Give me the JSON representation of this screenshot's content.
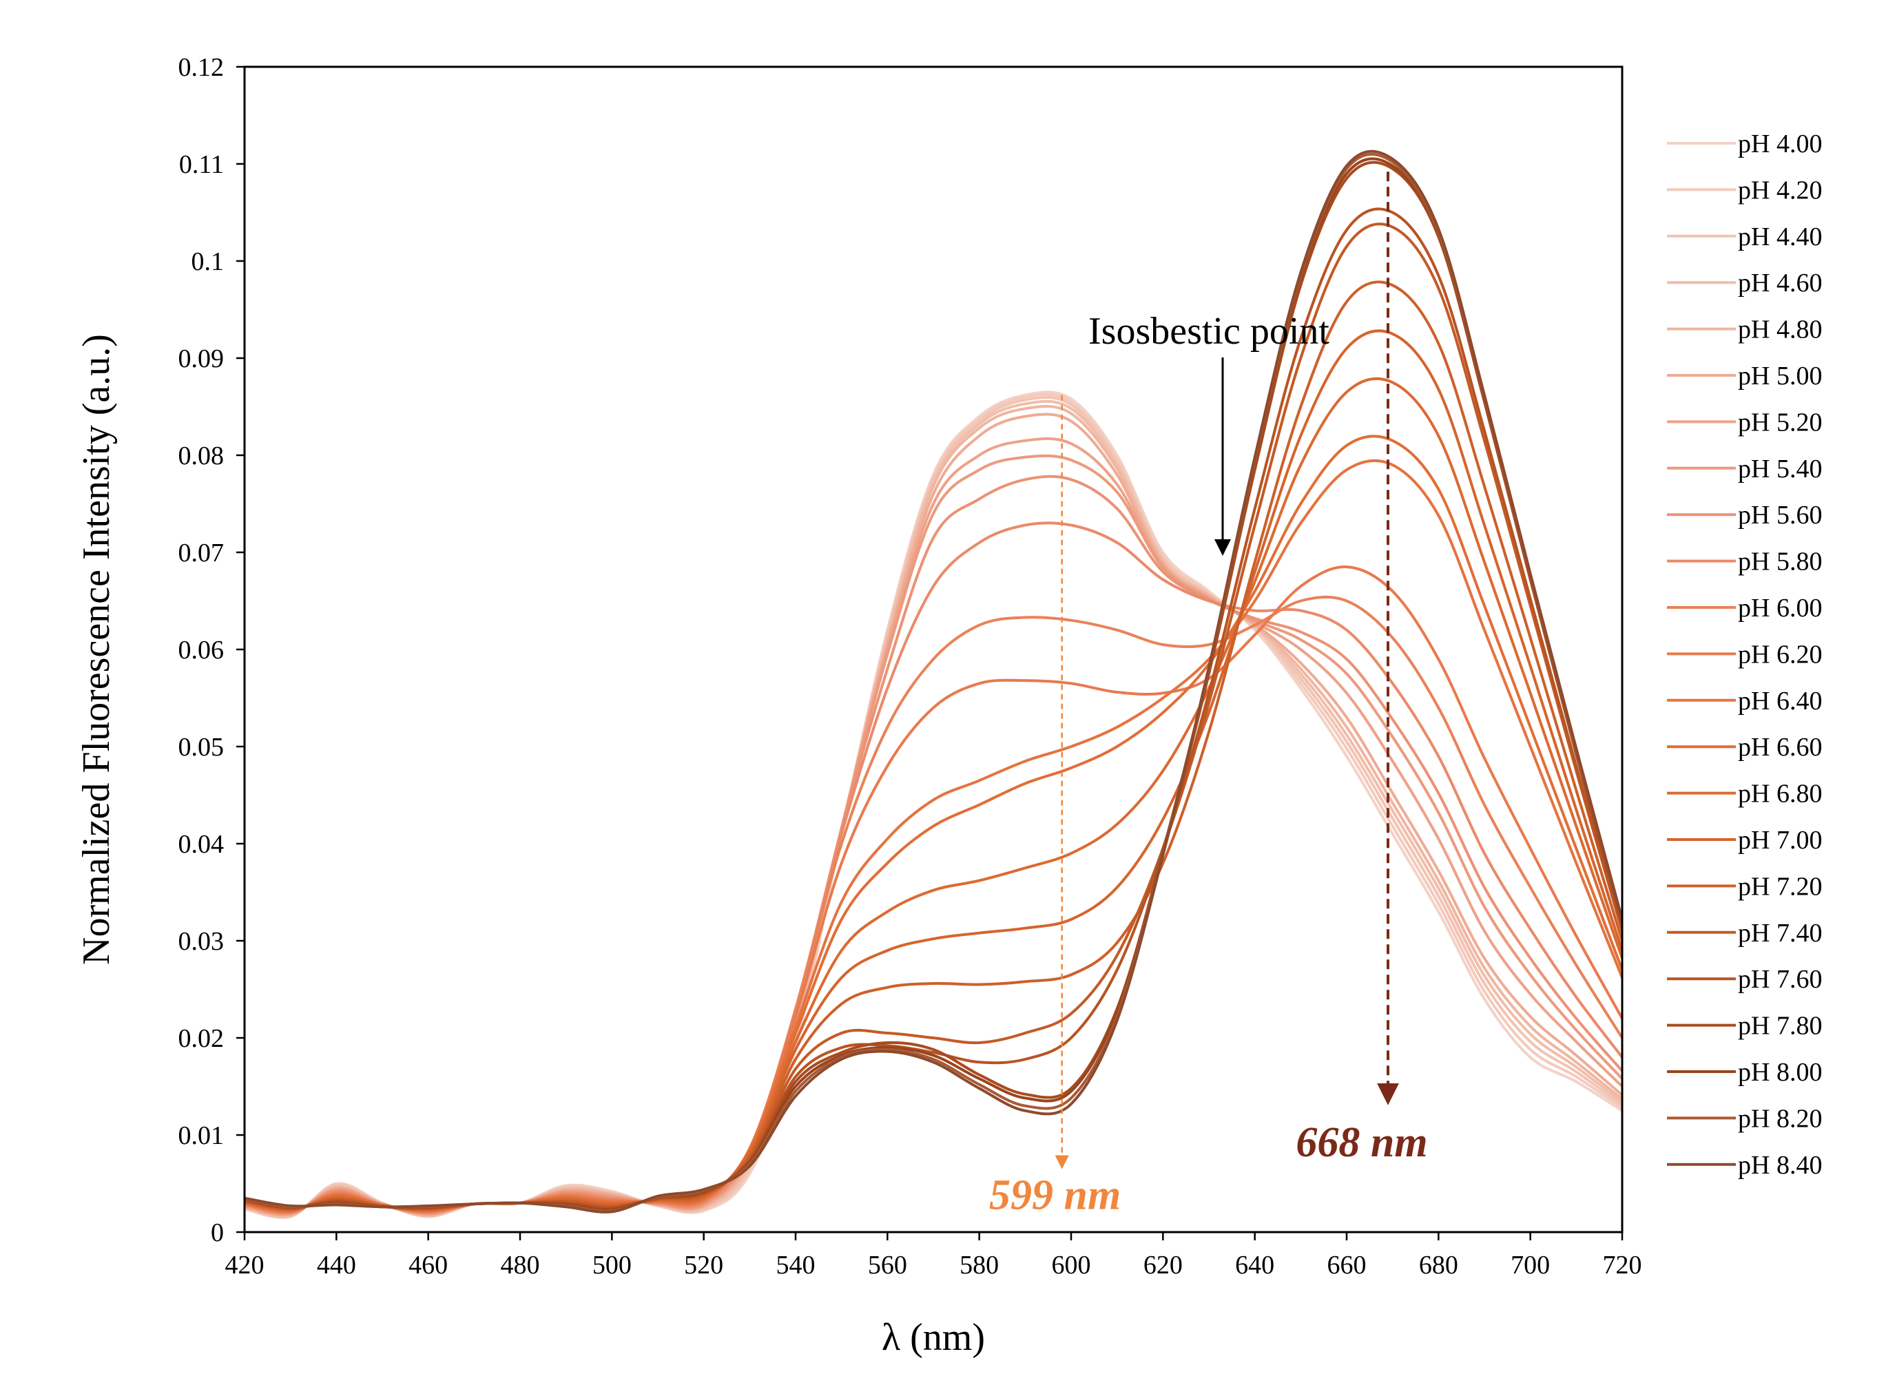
{
  "chart_data": {
    "type": "line",
    "title": "",
    "xlabel": "λ (nm)",
    "ylabel": "Normalized Fluorescence Intensity (a.u.)",
    "xlim": [
      420,
      720
    ],
    "ylim": [
      0,
      0.12
    ],
    "xticks": [
      420,
      440,
      460,
      480,
      500,
      520,
      540,
      560,
      580,
      600,
      620,
      640,
      660,
      680,
      700,
      720
    ],
    "yticks": [
      0,
      0.01,
      0.02,
      0.03,
      0.04,
      0.05,
      0.06,
      0.07,
      0.08,
      0.09,
      0.1,
      0.11,
      0.12
    ],
    "ytick_labels": [
      "0",
      "0.01",
      "0.02",
      "0.03",
      "0.04",
      "0.05",
      "0.06",
      "0.07",
      "0.08",
      "0.09",
      "0.1",
      "0.11",
      "0.12"
    ],
    "grid": false,
    "legend_position": "right",
    "x": [
      420,
      430,
      440,
      450,
      460,
      470,
      480,
      490,
      500,
      510,
      520,
      530,
      540,
      550,
      560,
      570,
      580,
      590,
      600,
      610,
      620,
      630,
      640,
      650,
      660,
      670,
      680,
      690,
      700,
      710,
      720
    ],
    "series": [
      {
        "name": "pH 4.00",
        "color": "#f4d2c6",
        "values": [
          0.0024,
          0.0016,
          0.005,
          0.003,
          0.0016,
          0.0029,
          0.003,
          0.0048,
          0.0042,
          0.0027,
          0.0022,
          0.006,
          0.019,
          0.041,
          0.062,
          0.078,
          0.084,
          0.0862,
          0.0858,
          0.08,
          0.07,
          0.066,
          0.062,
          0.056,
          0.049,
          0.041,
          0.033,
          0.024,
          0.018,
          0.0155,
          0.0125
        ]
      },
      {
        "name": "pH 4.20",
        "color": "#f2cbbd",
        "values": [
          0.0024,
          0.0016,
          0.0049,
          0.003,
          0.0016,
          0.0029,
          0.003,
          0.0047,
          0.0041,
          0.0027,
          0.0023,
          0.0063,
          0.0195,
          0.0412,
          0.0618,
          0.0778,
          0.0838,
          0.086,
          0.0855,
          0.0797,
          0.0697,
          0.0658,
          0.0622,
          0.0565,
          0.0498,
          0.0418,
          0.0338,
          0.0248,
          0.0188,
          0.016,
          0.0128
        ]
      },
      {
        "name": "pH 4.40",
        "color": "#f1c4b3",
        "values": [
          0.0025,
          0.0017,
          0.0048,
          0.0029,
          0.0017,
          0.0029,
          0.003,
          0.0046,
          0.004,
          0.0028,
          0.0024,
          0.0066,
          0.02,
          0.0413,
          0.0615,
          0.0775,
          0.0835,
          0.0857,
          0.0852,
          0.0793,
          0.0694,
          0.0657,
          0.0623,
          0.057,
          0.0505,
          0.0426,
          0.0346,
          0.0256,
          0.0196,
          0.0165,
          0.0131
        ]
      },
      {
        "name": "pH 4.60",
        "color": "#f0beab",
        "values": [
          0.0025,
          0.0017,
          0.0047,
          0.0029,
          0.0017,
          0.0029,
          0.003,
          0.0045,
          0.004,
          0.0028,
          0.0025,
          0.0069,
          0.0205,
          0.0414,
          0.0612,
          0.0772,
          0.0832,
          0.0853,
          0.0848,
          0.079,
          0.0692,
          0.0656,
          0.0624,
          0.0575,
          0.0512,
          0.0434,
          0.0354,
          0.0264,
          0.0204,
          0.017,
          0.0134
        ]
      },
      {
        "name": "pH 4.80",
        "color": "#efb6a1",
        "values": [
          0.0026,
          0.0018,
          0.0046,
          0.0029,
          0.0018,
          0.0029,
          0.003,
          0.0044,
          0.0039,
          0.0028,
          0.0026,
          0.0072,
          0.021,
          0.0415,
          0.0608,
          0.0768,
          0.0828,
          0.0848,
          0.0843,
          0.0786,
          0.069,
          0.0655,
          0.0625,
          0.058,
          0.052,
          0.0442,
          0.0362,
          0.0272,
          0.0212,
          0.0175,
          0.0137
        ]
      },
      {
        "name": "pH 5.00",
        "color": "#eeac94",
        "values": [
          0.0026,
          0.0018,
          0.0045,
          0.0029,
          0.0018,
          0.0029,
          0.003,
          0.0043,
          0.0038,
          0.0029,
          0.0027,
          0.0075,
          0.0215,
          0.0415,
          0.0605,
          0.076,
          0.082,
          0.084,
          0.0835,
          0.078,
          0.0688,
          0.0654,
          0.0626,
          0.0586,
          0.053,
          0.0452,
          0.0372,
          0.0282,
          0.0222,
          0.0182,
          0.0141
        ]
      },
      {
        "name": "pH 5.20",
        "color": "#eda288",
        "values": [
          0.0027,
          0.0019,
          0.0044,
          0.0029,
          0.0019,
          0.0029,
          0.003,
          0.0042,
          0.0037,
          0.0029,
          0.0028,
          0.0078,
          0.022,
          0.0416,
          0.06,
          0.075,
          0.08,
          0.0815,
          0.0812,
          0.077,
          0.0686,
          0.0653,
          0.0628,
          0.06,
          0.0555,
          0.0485,
          0.0405,
          0.031,
          0.0245,
          0.0196,
          0.015
        ]
      },
      {
        "name": "pH 5.40",
        "color": "#ec9a7e",
        "values": [
          0.0027,
          0.0019,
          0.0043,
          0.0028,
          0.0019,
          0.0029,
          0.003,
          0.0041,
          0.0036,
          0.0029,
          0.0029,
          0.008,
          0.0225,
          0.0416,
          0.0595,
          0.074,
          0.0785,
          0.0798,
          0.0795,
          0.0762,
          0.0684,
          0.0652,
          0.063,
          0.061,
          0.0575,
          0.051,
          0.0432,
          0.0335,
          0.0265,
          0.0208,
          0.0158
        ]
      },
      {
        "name": "pH 5.60",
        "color": "#eb9275",
        "values": [
          0.0028,
          0.002,
          0.0042,
          0.0028,
          0.002,
          0.0029,
          0.003,
          0.004,
          0.0035,
          0.003,
          0.003,
          0.0082,
          0.0228,
          0.0415,
          0.058,
          0.0715,
          0.0755,
          0.0775,
          0.0775,
          0.0745,
          0.068,
          0.0651,
          0.0632,
          0.0618,
          0.059,
          0.0528,
          0.0452,
          0.0355,
          0.0282,
          0.022,
          0.0166
        ]
      },
      {
        "name": "pH 5.80",
        "color": "#ea8a6a",
        "values": [
          0.0028,
          0.002,
          0.0041,
          0.0028,
          0.002,
          0.0029,
          0.003,
          0.0039,
          0.0034,
          0.003,
          0.0031,
          0.0084,
          0.023,
          0.041,
          0.056,
          0.0665,
          0.071,
          0.0728,
          0.0728,
          0.071,
          0.0672,
          0.065,
          0.064,
          0.064,
          0.062,
          0.0565,
          0.049,
          0.039,
          0.0312,
          0.0242,
          0.018
        ]
      },
      {
        "name": "pH 6.00",
        "color": "#e98259",
        "values": [
          0.0029,
          0.0021,
          0.004,
          0.0028,
          0.0021,
          0.0029,
          0.003,
          0.0038,
          0.0033,
          0.0031,
          0.0032,
          0.0086,
          0.0228,
          0.04,
          0.052,
          0.059,
          0.0625,
          0.0633,
          0.063,
          0.062,
          0.0605,
          0.0605,
          0.0625,
          0.065,
          0.065,
          0.0612,
          0.054,
          0.044,
          0.0355,
          0.0275,
          0.02
        ]
      },
      {
        "name": "pH 6.20",
        "color": "#e87a4e",
        "values": [
          0.0029,
          0.0021,
          0.0039,
          0.0028,
          0.0021,
          0.0029,
          0.003,
          0.0037,
          0.0032,
          0.0031,
          0.0033,
          0.0086,
          0.0222,
          0.038,
          0.048,
          0.054,
          0.0565,
          0.0568,
          0.0565,
          0.0556,
          0.0555,
          0.057,
          0.0615,
          0.0665,
          0.0685,
          0.066,
          0.059,
          0.0488,
          0.0395,
          0.0305,
          0.022
        ]
      },
      {
        "name": "pH 6.40",
        "color": "#e5733f",
        "values": [
          0.003,
          0.0022,
          0.0038,
          0.0028,
          0.0022,
          0.0029,
          0.003,
          0.0036,
          0.0031,
          0.0032,
          0.0034,
          0.0085,
          0.0212,
          0.034,
          0.0405,
          0.0445,
          0.0465,
          0.0485,
          0.05,
          0.052,
          0.055,
          0.059,
          0.065,
          0.073,
          0.0785,
          0.079,
          0.0738,
          0.062,
          0.05,
          0.038,
          0.0262
        ]
      },
      {
        "name": "pH 6.60",
        "color": "#e16e36",
        "values": [
          0.003,
          0.0022,
          0.0037,
          0.0027,
          0.0022,
          0.0029,
          0.003,
          0.0035,
          0.003,
          0.0032,
          0.0035,
          0.0084,
          0.0205,
          0.0322,
          0.038,
          0.0418,
          0.044,
          0.0462,
          0.0478,
          0.05,
          0.0535,
          0.0585,
          0.066,
          0.075,
          0.081,
          0.0815,
          0.0765,
          0.0645,
          0.052,
          0.0395,
          0.027
        ]
      },
      {
        "name": "pH 6.80",
        "color": "#dc6a31",
        "values": [
          0.0031,
          0.0023,
          0.0036,
          0.0027,
          0.0023,
          0.0029,
          0.003,
          0.0034,
          0.0029,
          0.0033,
          0.0036,
          0.0082,
          0.0196,
          0.029,
          0.033,
          0.0352,
          0.0362,
          0.0375,
          0.039,
          0.042,
          0.0475,
          0.056,
          0.067,
          0.079,
          0.0865,
          0.0875,
          0.082,
          0.069,
          0.0555,
          0.0418,
          0.0282
        ]
      },
      {
        "name": "pH 7.00",
        "color": "#d5652d",
        "values": [
          0.0031,
          0.0023,
          0.0035,
          0.0027,
          0.0023,
          0.0029,
          0.003,
          0.0033,
          0.0028,
          0.0033,
          0.0037,
          0.008,
          0.0188,
          0.0262,
          0.029,
          0.0302,
          0.0308,
          0.0313,
          0.0322,
          0.0355,
          0.0425,
          0.0535,
          0.068,
          0.082,
          0.091,
          0.0925,
          0.0868,
          0.0728,
          0.0583,
          0.0435,
          0.029
        ]
      },
      {
        "name": "pH 7.20",
        "color": "#cd6029",
        "values": [
          0.0032,
          0.0024,
          0.0034,
          0.0027,
          0.0024,
          0.0029,
          0.003,
          0.0032,
          0.0027,
          0.0034,
          0.0038,
          0.0078,
          0.0178,
          0.0235,
          0.0252,
          0.0256,
          0.0255,
          0.0258,
          0.0265,
          0.0298,
          0.038,
          0.0515,
          0.069,
          0.085,
          0.0958,
          0.0975,
          0.0915,
          0.0768,
          0.0612,
          0.0455,
          0.03
        ]
      },
      {
        "name": "pH 7.40",
        "color": "#c45a26",
        "values": [
          0.0032,
          0.0024,
          0.0033,
          0.0027,
          0.0024,
          0.0029,
          0.003,
          0.0031,
          0.0026,
          0.0034,
          0.0039,
          0.0076,
          0.0168,
          0.0205,
          0.0205,
          0.02,
          0.0195,
          0.0205,
          0.0225,
          0.0285,
          0.0395,
          0.0545,
          0.0728,
          0.09,
          0.1015,
          0.1035,
          0.0972,
          0.0815,
          0.0645,
          0.0475,
          0.031
        ]
      },
      {
        "name": "pH 7.60",
        "color": "#b85423",
        "values": [
          0.0033,
          0.0025,
          0.0032,
          0.0026,
          0.0025,
          0.0029,
          0.003,
          0.003,
          0.0025,
          0.0035,
          0.004,
          0.0074,
          0.016,
          0.019,
          0.0192,
          0.0185,
          0.0175,
          0.0178,
          0.02,
          0.027,
          0.0395,
          0.0555,
          0.0745,
          0.092,
          0.1032,
          0.105,
          0.0985,
          0.0825,
          0.0652,
          0.048,
          0.0312
        ]
      },
      {
        "name": "pH 7.80",
        "color": "#a94b1f",
        "values": [
          0.0033,
          0.0025,
          0.0031,
          0.0026,
          0.0025,
          0.0029,
          0.003,
          0.0029,
          0.0024,
          0.0035,
          0.0041,
          0.0073,
          0.0155,
          0.0185,
          0.0195,
          0.0188,
          0.0162,
          0.0142,
          0.0148,
          0.023,
          0.039,
          0.0575,
          0.0785,
          0.0975,
          0.1085,
          0.1095,
          0.1025,
          0.0855,
          0.0672,
          0.0492,
          0.0318
        ]
      },
      {
        "name": "pH 8.00",
        "color": "#9b441c",
        "values": [
          0.0034,
          0.0026,
          0.003,
          0.0026,
          0.0026,
          0.0029,
          0.003,
          0.0028,
          0.0023,
          0.0036,
          0.0042,
          0.0072,
          0.015,
          0.0182,
          0.019,
          0.0182,
          0.0158,
          0.0138,
          0.0145,
          0.0228,
          0.0392,
          0.058,
          0.0792,
          0.0982,
          0.109,
          0.1098,
          0.1028,
          0.0858,
          0.0675,
          0.0495,
          0.032
        ]
      },
      {
        "name": "pH 8.20",
        "color": "#a95a34",
        "values": [
          0.0034,
          0.0026,
          0.0029,
          0.0026,
          0.0026,
          0.0029,
          0.003,
          0.0027,
          0.0022,
          0.0036,
          0.0043,
          0.007,
          0.0145,
          0.018,
          0.0188,
          0.0178,
          0.0152,
          0.013,
          0.0138,
          0.0222,
          0.039,
          0.058,
          0.0795,
          0.0985,
          0.1095,
          0.1102,
          0.103,
          0.086,
          0.0676,
          0.0496,
          0.0321
        ]
      },
      {
        "name": "pH 8.40",
        "color": "#8d4a2d",
        "values": [
          0.0035,
          0.0027,
          0.0028,
          0.0026,
          0.0027,
          0.0029,
          0.003,
          0.0026,
          0.0021,
          0.0037,
          0.0044,
          0.0068,
          0.014,
          0.0178,
          0.0186,
          0.0175,
          0.0148,
          0.0125,
          0.0132,
          0.0218,
          0.0388,
          0.0582,
          0.0798,
          0.0988,
          0.1098,
          0.1105,
          0.1033,
          0.0862,
          0.0678,
          0.0498,
          0.0322
        ]
      }
    ],
    "annotations": [
      {
        "id": "isosbestic",
        "text": "Isosbestic point",
        "x": 633,
        "y": 0.0695
      },
      {
        "id": "peak599",
        "text": "599 nm",
        "x": 598,
        "color": "#f0873c",
        "from_y": 0.0862,
        "to_y": 0.0072
      },
      {
        "id": "peak668",
        "text": "668 nm",
        "x": 669,
        "color": "#7a2a18",
        "from_y": 0.1092,
        "to_y": 0.0142
      }
    ]
  }
}
